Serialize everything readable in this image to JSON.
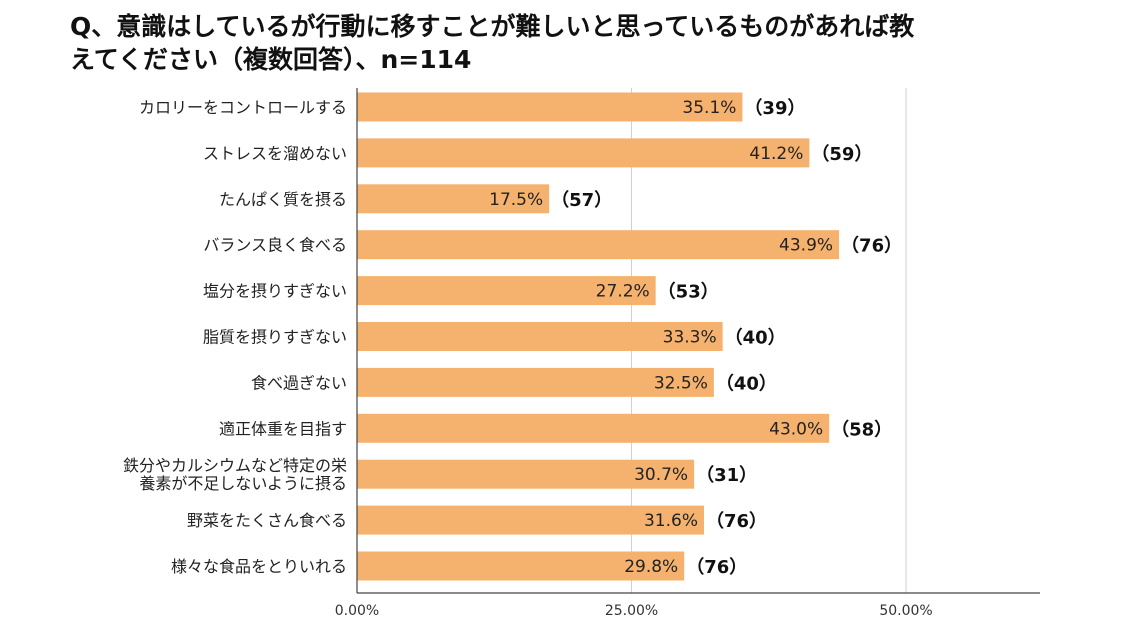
{
  "title": "Q、意識はしているが行動に移すことが難しいと思っているものがあれば教\nえてください（複数回答）、n=114",
  "chart_data": {
    "type": "bar",
    "orientation": "horizontal",
    "categories": [
      "カロリーをコントロールする",
      "ストレスを溜めない",
      "たんぱく質を摂る",
      "バランス良く食べる",
      "塩分を摂りすぎない",
      "脂質を摂りすぎない",
      "食べ過ぎない",
      "適正体重を目指す",
      "鉄分やカルシウムなど特定の栄\n養素が不足しないように摂る",
      "野菜をたくさん食べる",
      "様々な食品をとりいれる"
    ],
    "values": [
      35.1,
      41.2,
      17.5,
      43.9,
      27.2,
      33.3,
      32.5,
      43.0,
      30.7,
      31.6,
      29.8
    ],
    "value_labels": [
      "35.1%",
      "41.2%",
      "17.5%",
      "43.9%",
      "27.2%",
      "33.3%",
      "32.5%",
      "43.0%",
      "30.7%",
      "31.6%",
      "29.8%"
    ],
    "count_labels": [
      "（39）",
      "（59）",
      "（57）",
      "（76）",
      "（53）",
      "（40）",
      "（40）",
      "（58）",
      "（31）",
      "（76）",
      "（76）"
    ],
    "xlim": [
      0,
      62.2
    ],
    "xticks": [
      0,
      25,
      50
    ],
    "xtick_labels": [
      "0.00%",
      "25.00%",
      "50.00%"
    ],
    "grid": true,
    "bar_color": "#f5b26e",
    "grid_color": "#d0d0d0",
    "axis_color": "#444444"
  }
}
